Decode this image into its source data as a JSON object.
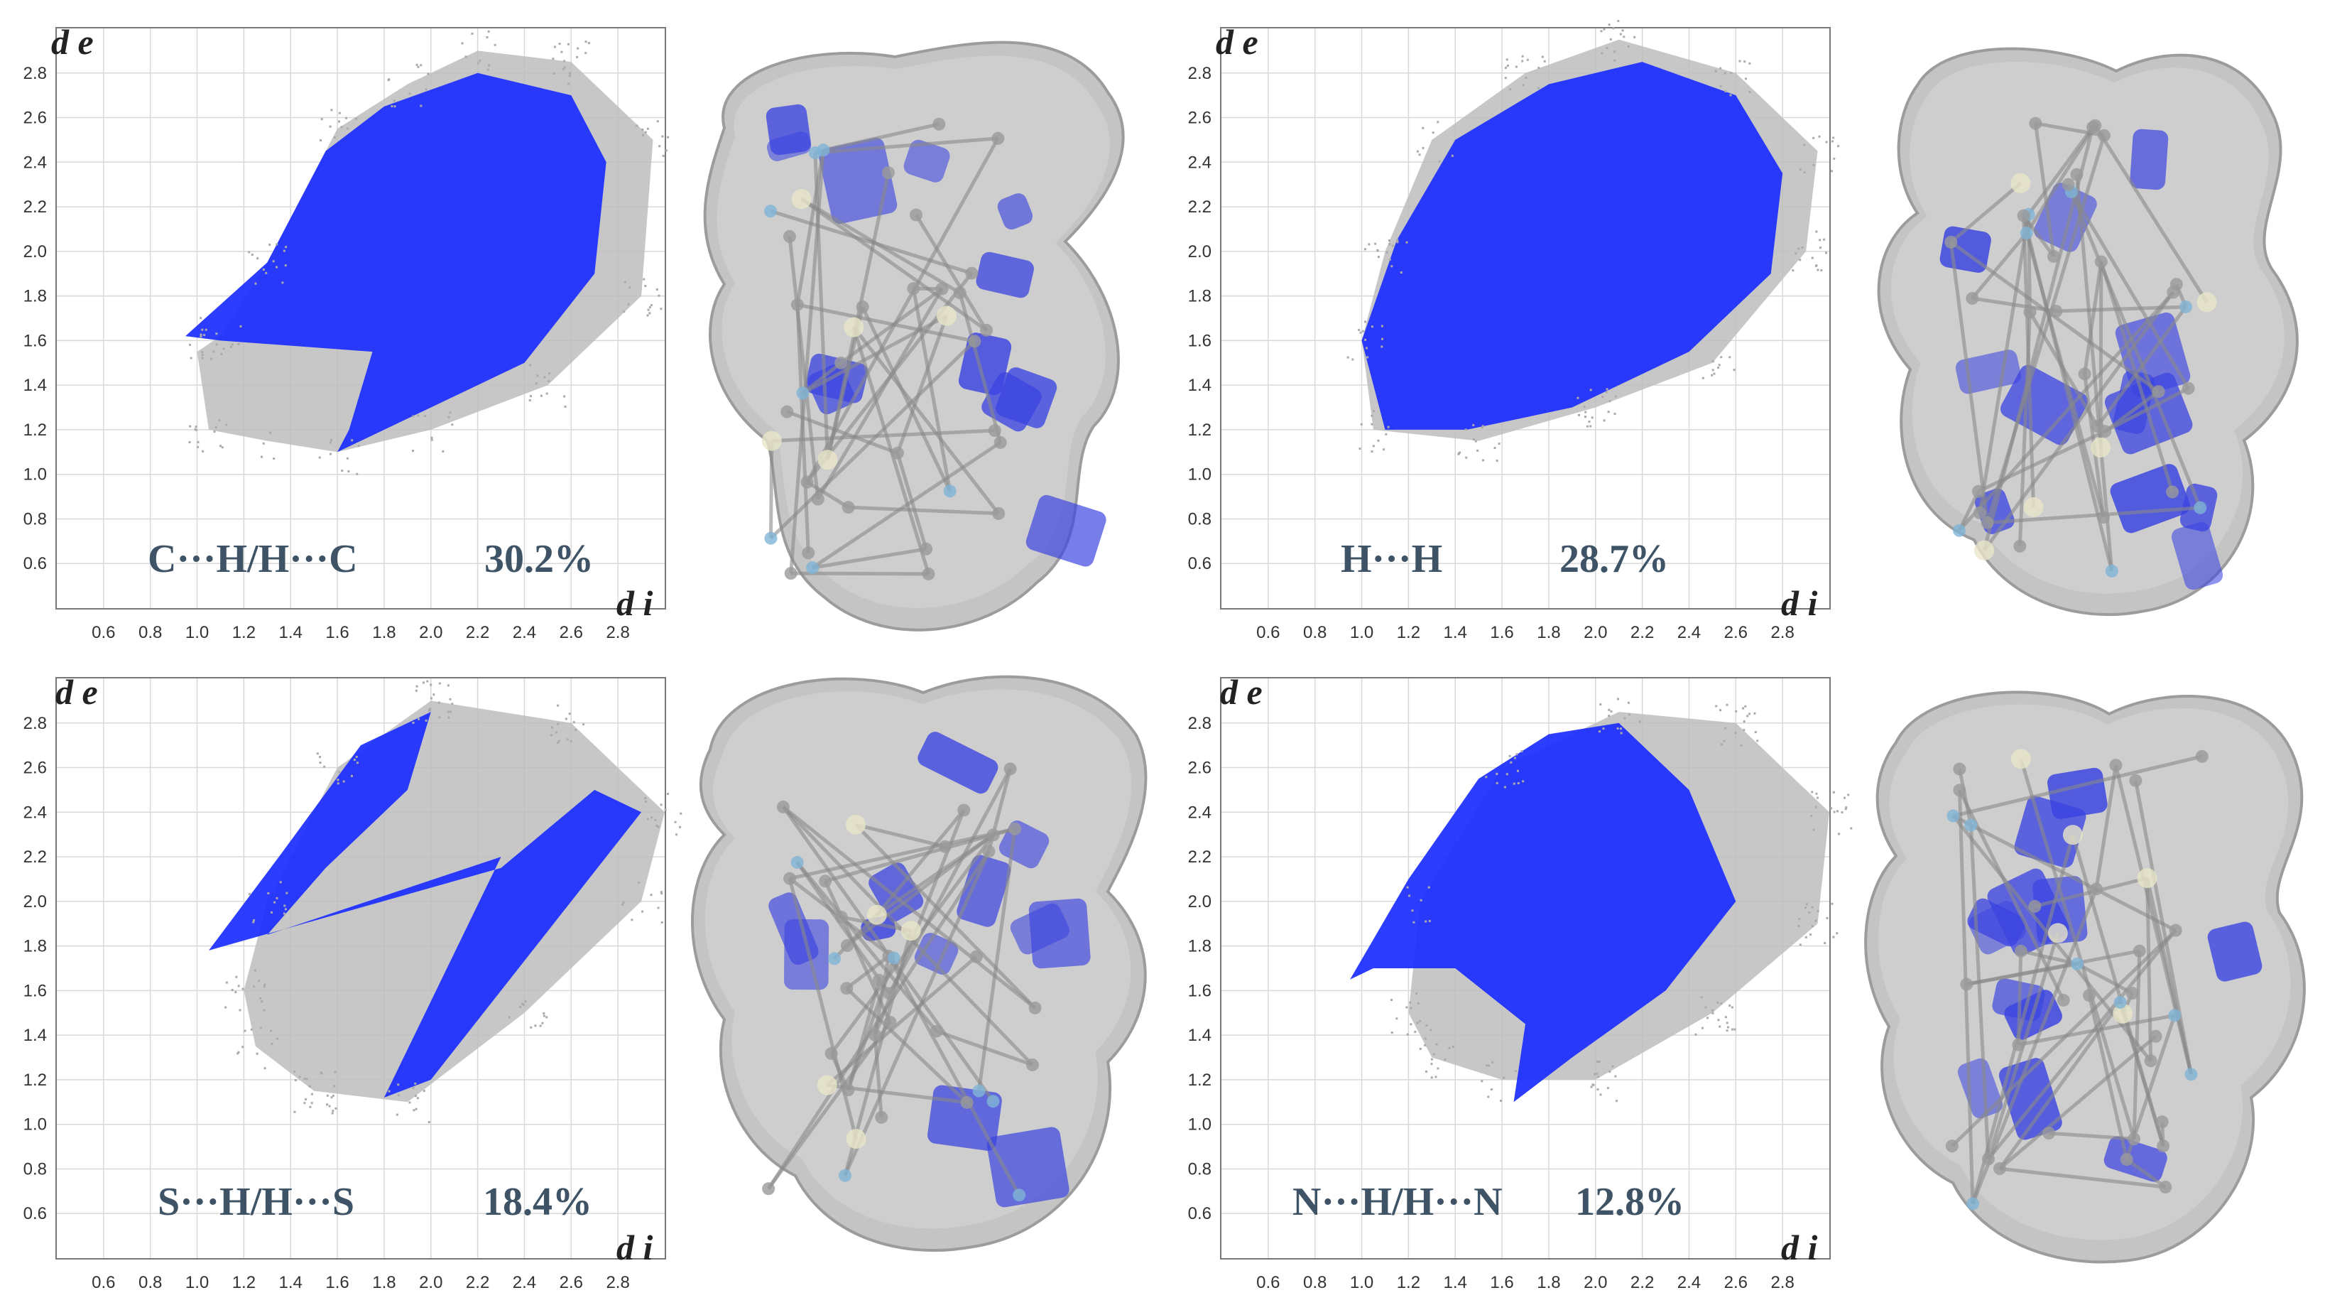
{
  "colors": {
    "grey": "#bdbdbd",
    "blue": "#1a2cff",
    "label": "#3e5466"
  },
  "chart_data": [
    {
      "type": "scatter",
      "xlabel": "d i",
      "ylabel": "d e",
      "x_ticks": [
        "0.6",
        "0.8",
        "1.0",
        "1.2",
        "1.4",
        "1.6",
        "1.8",
        "2.0",
        "2.2",
        "2.4",
        "2.6",
        "2.8"
      ],
      "y_ticks": [
        "0.6",
        "0.8",
        "1.0",
        "1.2",
        "1.4",
        "1.6",
        "1.8",
        "2.0",
        "2.2",
        "2.4",
        "2.6",
        "2.8"
      ],
      "xlim": [
        0.4,
        3.0
      ],
      "ylim": [
        0.4,
        3.0
      ],
      "contact": "C···H/H···C",
      "percent": "30.2%"
    },
    {
      "type": "scatter",
      "xlabel": "d i",
      "ylabel": "d e",
      "x_ticks": [
        "0.6",
        "0.8",
        "1.0",
        "1.2",
        "1.4",
        "1.6",
        "1.8",
        "2.0",
        "2.2",
        "2.4",
        "2.6",
        "2.8"
      ],
      "y_ticks": [
        "0.6",
        "0.8",
        "1.0",
        "1.2",
        "1.4",
        "1.6",
        "1.8",
        "2.0",
        "2.2",
        "2.4",
        "2.6",
        "2.8"
      ],
      "xlim": [
        0.4,
        3.0
      ],
      "ylim": [
        0.4,
        3.0
      ],
      "contact": "H···H",
      "percent": "28.7%"
    },
    {
      "type": "scatter",
      "xlabel": "d i",
      "ylabel": "d e",
      "x_ticks": [
        "0.6",
        "0.8",
        "1.0",
        "1.2",
        "1.4",
        "1.6",
        "1.8",
        "2.0",
        "2.2",
        "2.4",
        "2.6",
        "2.8"
      ],
      "y_ticks": [
        "0.6",
        "0.8",
        "1.0",
        "1.2",
        "1.4",
        "1.6",
        "1.8",
        "2.0",
        "2.2",
        "2.4",
        "2.6",
        "2.8"
      ],
      "xlim": [
        0.4,
        3.0
      ],
      "ylim": [
        0.4,
        3.0
      ],
      "contact": "S···H/H···S",
      "percent": "18.4%"
    },
    {
      "type": "scatter",
      "xlabel": "d i",
      "ylabel": "d e",
      "x_ticks": [
        "0.6",
        "0.8",
        "1.0",
        "1.2",
        "1.4",
        "1.6",
        "1.8",
        "2.0",
        "2.2",
        "2.4",
        "2.6",
        "2.8"
      ],
      "y_ticks": [
        "0.6",
        "0.8",
        "1.0",
        "1.2",
        "1.4",
        "1.6",
        "1.8",
        "2.0",
        "2.2",
        "2.4",
        "2.6",
        "2.8"
      ],
      "xlim": [
        0.4,
        3.0
      ],
      "ylim": [
        0.4,
        3.0
      ],
      "contact": "N···H/H···N",
      "percent": "12.8%"
    }
  ]
}
